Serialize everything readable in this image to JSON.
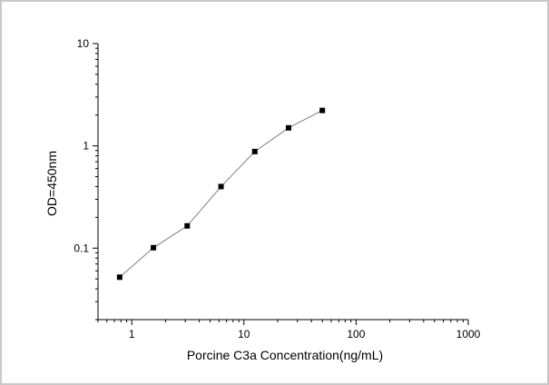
{
  "chart_data": {
    "type": "scatter",
    "title": "",
    "xlabel": "Porcine C3a Concentration(ng/mL)",
    "ylabel": "OD=450nm",
    "x_scale": "log",
    "y_scale": "log",
    "xlim": [
      0.5,
      1000
    ],
    "ylim": [
      0.02,
      10
    ],
    "x_ticks": [
      "1",
      "10",
      "100",
      "1000"
    ],
    "y_ticks": [
      "0.1",
      "1",
      "10"
    ],
    "grid": false,
    "legend": "none",
    "marker_color": "#000000",
    "line_color": "#7f7f7f",
    "series": [
      {
        "x": [
          0.78,
          1.56,
          3.12,
          6.25,
          12.5,
          25,
          50
        ],
        "y": [
          0.052,
          0.101,
          0.165,
          0.4,
          0.88,
          1.5,
          2.22
        ]
      }
    ]
  }
}
